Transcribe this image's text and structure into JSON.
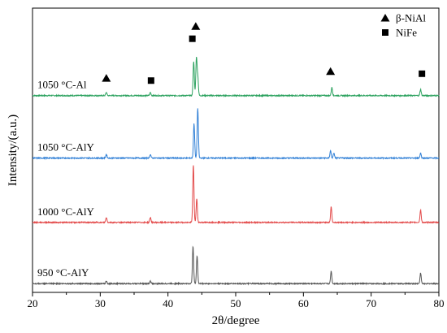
{
  "chart_data": {
    "type": "line",
    "xlabel": "2θ/degree",
    "ylabel": "Intensity/(a.u.)",
    "xlim": [
      20,
      80
    ],
    "x_ticks": [
      20,
      30,
      40,
      50,
      60,
      70,
      80
    ],
    "y_ticks_shown": false,
    "legend": {
      "position": "top-right",
      "items": [
        {
          "label": "β-NiAl",
          "marker": "triangle"
        },
        {
          "label": "NiFe",
          "marker": "square"
        }
      ]
    },
    "series": [
      {
        "name": "1050 °C-Al",
        "color": "#2ca25f",
        "baseline": 3.05,
        "peaks": [
          {
            "x": 30.9,
            "height": 0.05
          },
          {
            "x": 37.4,
            "height": 0.05
          },
          {
            "x": 43.8,
            "height": 0.55
          },
          {
            "x": 44.2,
            "height": 0.6
          },
          {
            "x": 44.4,
            "height": 0.3
          },
          {
            "x": 64.2,
            "height": 0.13
          },
          {
            "x": 77.3,
            "height": 0.1
          }
        ]
      },
      {
        "name": "1050 °C-AlY",
        "color": "#2f7fd6",
        "baseline": 2.05,
        "peaks": [
          {
            "x": 30.9,
            "height": 0.06
          },
          {
            "x": 37.4,
            "height": 0.06
          },
          {
            "x": 43.85,
            "height": 0.55
          },
          {
            "x": 44.4,
            "height": 0.8
          },
          {
            "x": 64.0,
            "height": 0.12
          },
          {
            "x": 64.5,
            "height": 0.08
          },
          {
            "x": 77.3,
            "height": 0.08
          }
        ]
      },
      {
        "name": "1000 °C-AlY",
        "color": "#e34a4a",
        "baseline": 1.02,
        "peaks": [
          {
            "x": 30.9,
            "height": 0.08
          },
          {
            "x": 37.4,
            "height": 0.08
          },
          {
            "x": 43.75,
            "height": 0.92
          },
          {
            "x": 44.25,
            "height": 0.38
          },
          {
            "x": 64.1,
            "height": 0.25
          },
          {
            "x": 77.3,
            "height": 0.2
          }
        ]
      },
      {
        "name": "950 °C-AlY",
        "color": "#555555",
        "baseline": 0.04,
        "peaks": [
          {
            "x": 30.9,
            "height": 0.04
          },
          {
            "x": 37.4,
            "height": 0.04
          },
          {
            "x": 43.7,
            "height": 0.6
          },
          {
            "x": 44.3,
            "height": 0.45
          },
          {
            "x": 64.1,
            "height": 0.2
          },
          {
            "x": 77.3,
            "height": 0.17
          }
        ]
      }
    ],
    "phase_markers": [
      {
        "x": 30.9,
        "y": 3.33,
        "phase": "β-NiAl"
      },
      {
        "x": 37.5,
        "y": 3.29,
        "phase": "NiFe"
      },
      {
        "x": 43.6,
        "y": 3.96,
        "phase": "NiFe"
      },
      {
        "x": 44.1,
        "y": 4.16,
        "phase": "β-NiAl"
      },
      {
        "x": 64.0,
        "y": 3.44,
        "phase": "β-NiAl"
      },
      {
        "x": 77.5,
        "y": 3.4,
        "phase": "NiFe"
      }
    ]
  }
}
